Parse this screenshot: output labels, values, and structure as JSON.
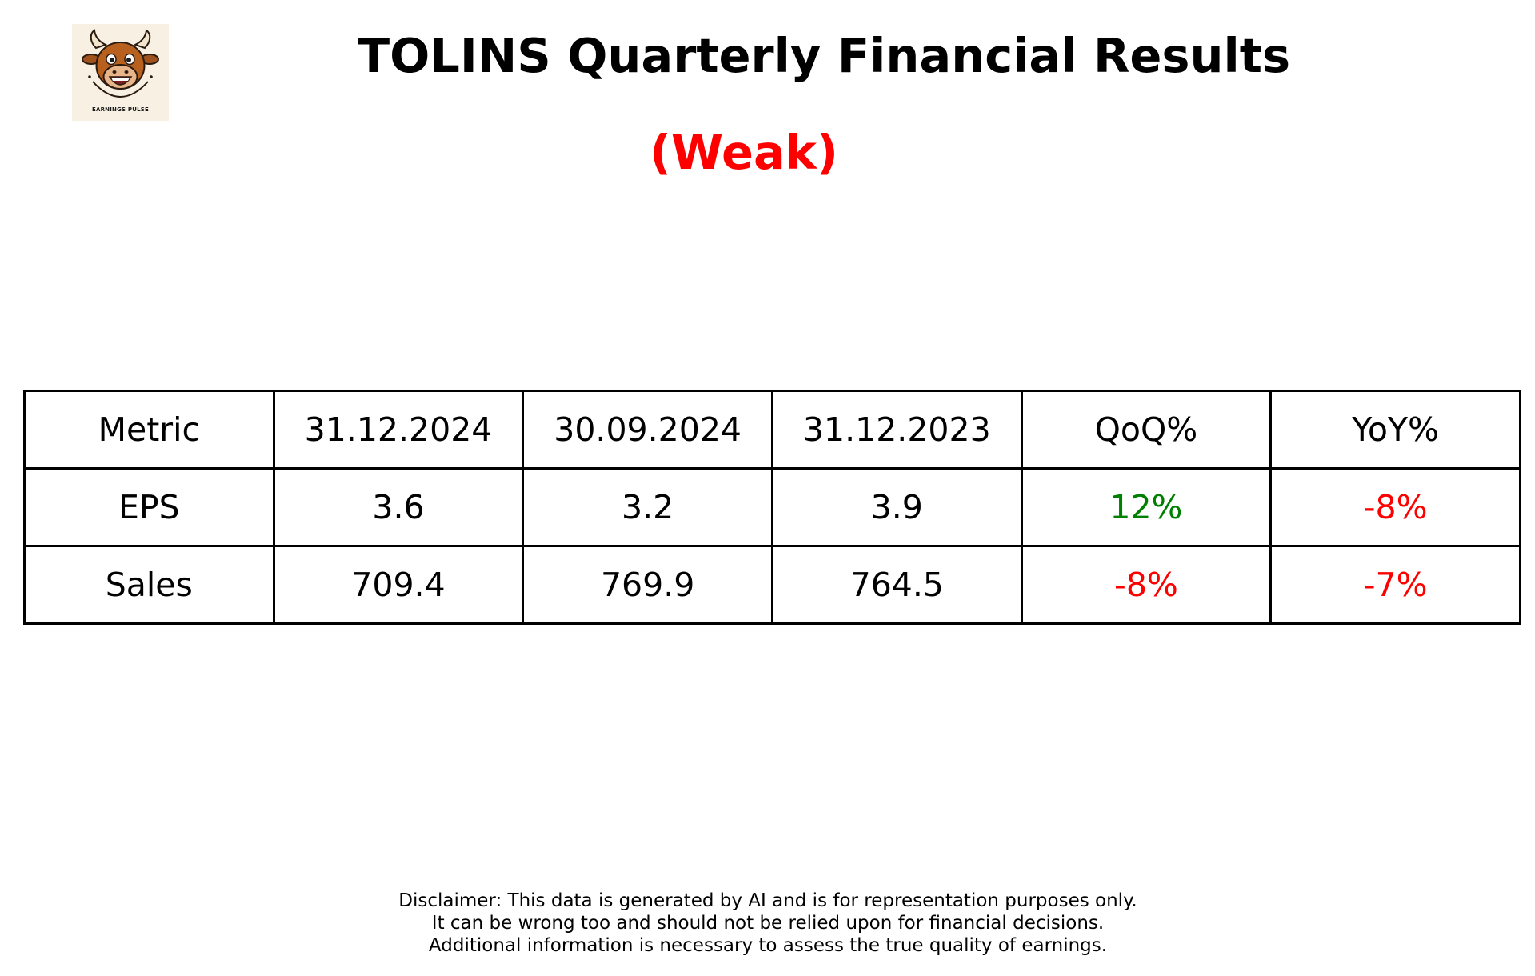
{
  "logo": {
    "icon": "bull-mascot-icon",
    "caption": "EARNINGS PULSE"
  },
  "header": {
    "title": "TOLINS Quarterly Financial Results",
    "verdict": "(Weak)",
    "verdict_color": "#ff0000"
  },
  "chart_data": {
    "type": "table",
    "columns": [
      "Metric",
      "31.12.2024",
      "30.09.2024",
      "31.12.2023",
      "QoQ%",
      "YoY%"
    ],
    "rows": [
      {
        "cells": [
          "EPS",
          "3.6",
          "3.2",
          "3.9",
          "12%",
          "-8%"
        ],
        "colors": [
          "#000000",
          "#000000",
          "#000000",
          "#000000",
          "#008000",
          "#ff0000"
        ]
      },
      {
        "cells": [
          "Sales",
          "709.4",
          "769.9",
          "764.5",
          "-8%",
          "-7%"
        ],
        "colors": [
          "#000000",
          "#000000",
          "#000000",
          "#000000",
          "#ff0000",
          "#ff0000"
        ]
      }
    ]
  },
  "disclaimer": {
    "lines": [
      "Disclaimer: This data is generated by AI and is for representation purposes only.",
      "It can be wrong too and should not be relied upon for financial decisions.",
      "Additional information is necessary to assess the true quality of earnings."
    ]
  }
}
